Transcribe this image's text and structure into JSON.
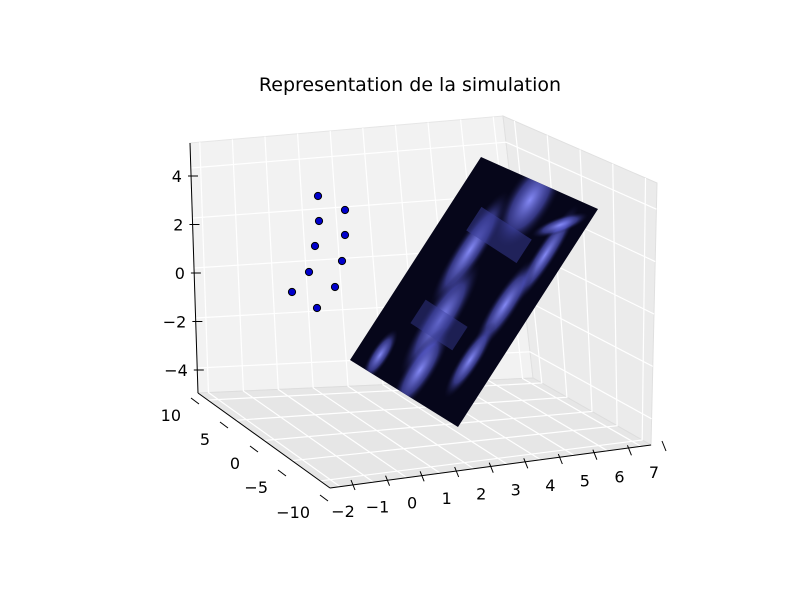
{
  "chart_data": {
    "type": "scatter3d",
    "title": "Representation de la simulation",
    "xlabel": "",
    "ylabel": "",
    "zlabel": "",
    "grid": true,
    "x_ticks": [
      "−2",
      "−1",
      "0",
      "1",
      "2",
      "3",
      "4",
      "5",
      "6",
      "7"
    ],
    "y_ticks": [
      "−10",
      "−5",
      "0",
      "5",
      "10"
    ],
    "z_ticks": [
      "−4",
      "−2",
      "0",
      "2",
      "4"
    ],
    "xlim": [
      -2,
      7
    ],
    "ylim": [
      -10,
      10
    ],
    "zlim": [
      -5,
      5
    ],
    "series": [
      {
        "marker_color": "#0000cc",
        "points_screen_order": [
          {
            "id": "p1"
          },
          {
            "id": "p2"
          },
          {
            "id": "p3"
          },
          {
            "id": "p4"
          },
          {
            "id": "p5"
          },
          {
            "id": "p6"
          },
          {
            "id": "p7"
          },
          {
            "id": "p8"
          },
          {
            "id": "p9"
          },
          {
            "id": "p10"
          }
        ]
      }
    ],
    "surface": {
      "description_color_dark": "#000010",
      "description_color_light": "#7b80ff"
    }
  }
}
